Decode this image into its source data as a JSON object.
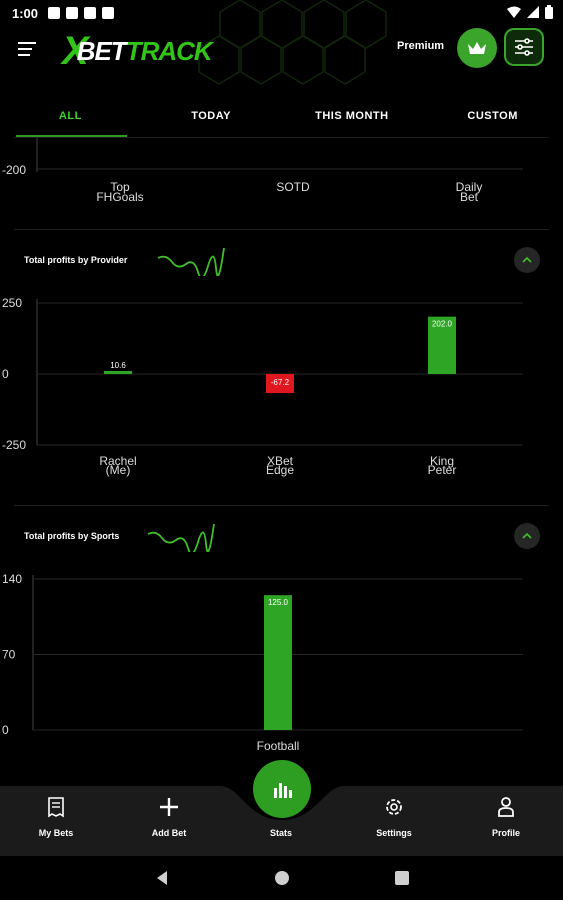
{
  "status_bar": {
    "time": "1:00"
  },
  "header": {
    "logo_x": "X",
    "logo_bet": "BET",
    "logo_track": "TRACK",
    "premium_label": "Premium"
  },
  "tabs": [
    {
      "label": "ALL",
      "active": true
    },
    {
      "label": "TODAY",
      "active": false
    },
    {
      "label": "THIS MONTH",
      "active": false
    },
    {
      "label": "CUSTOM",
      "active": false
    }
  ],
  "top_chart_partial": {
    "y_tick": "-200",
    "categories": [
      [
        "Top",
        "FHGoals"
      ],
      [
        "SOTD"
      ],
      [
        "Daily",
        "Bet"
      ]
    ]
  },
  "provider_card": {
    "title": "Total profits by Provider"
  },
  "sports_card": {
    "title": "Total profits by Sports"
  },
  "colors": {
    "accent": "#2e9e22",
    "positive_bar": "#2ea524",
    "negative_bar": "#e0171f",
    "background": "#000000"
  },
  "chart_data": [
    {
      "type": "bar",
      "title": "Total profits by Provider",
      "categories": [
        "Rachel (Me)",
        "XBet Edge",
        "King Peter"
      ],
      "category_lines": [
        [
          "Rachel",
          "(Me)"
        ],
        [
          "XBet",
          "Edge"
        ],
        [
          "King",
          "Peter"
        ]
      ],
      "values": [
        10.6,
        -67.2,
        202.0
      ],
      "data_labels": [
        "10.6",
        "-67.2",
        "202.0"
      ],
      "ylim": [
        -250,
        250
      ],
      "y_ticks": [
        250,
        0,
        -250
      ],
      "grid": true,
      "xlabel": "",
      "ylabel": ""
    },
    {
      "type": "bar",
      "title": "Total profits by Sports",
      "categories": [
        "Football"
      ],
      "values": [
        125.0
      ],
      "data_labels": [
        "125.0"
      ],
      "ylim": [
        0,
        140
      ],
      "y_ticks": [
        140,
        70,
        0
      ],
      "grid": true,
      "xlabel": "",
      "ylabel": ""
    }
  ],
  "bottom_nav": [
    {
      "label": "My Bets",
      "icon": "receipt-icon"
    },
    {
      "label": "Add Bet",
      "icon": "plus-icon"
    },
    {
      "label": "Stats",
      "icon": "bar-chart-icon",
      "active": true
    },
    {
      "label": "Settings",
      "icon": "gear-icon"
    },
    {
      "label": "Profile",
      "icon": "person-icon"
    }
  ]
}
